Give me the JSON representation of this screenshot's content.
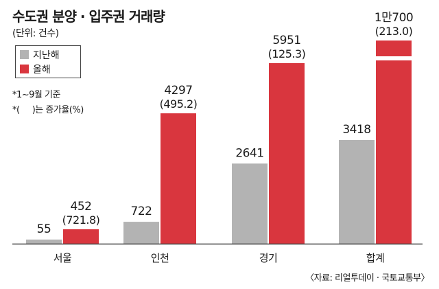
{
  "title": "수도권 분양 · 입주권 거래량",
  "unit": "(단위: 건수)",
  "notes": [
    "*1~9월 기준",
    "*(     )는 증가율(%)"
  ],
  "source": "〈자료: 리얼투데이 · 국토교통부〉",
  "colors": {
    "prev": "#b3b3b3",
    "curr": "#d9363e",
    "axis": "#444444"
  },
  "chart_data": {
    "type": "bar",
    "categories": [
      "서울",
      "인천",
      "경기",
      "합계"
    ],
    "series": [
      {
        "name": "지난해",
        "values": [
          55,
          722,
          2641,
          3418
        ],
        "labels": [
          "55",
          "722",
          "2641",
          "3418"
        ]
      },
      {
        "name": "올해",
        "values": [
          452,
          4297,
          5951,
          10700
        ],
        "labels": [
          "452",
          "4297",
          "5951",
          "1만700"
        ]
      }
    ],
    "growth_labels": [
      "(721.8)",
      "(495.2)",
      "(125.3)",
      "(213.0)"
    ],
    "axis_break": true,
    "legend_position": "top-left"
  }
}
